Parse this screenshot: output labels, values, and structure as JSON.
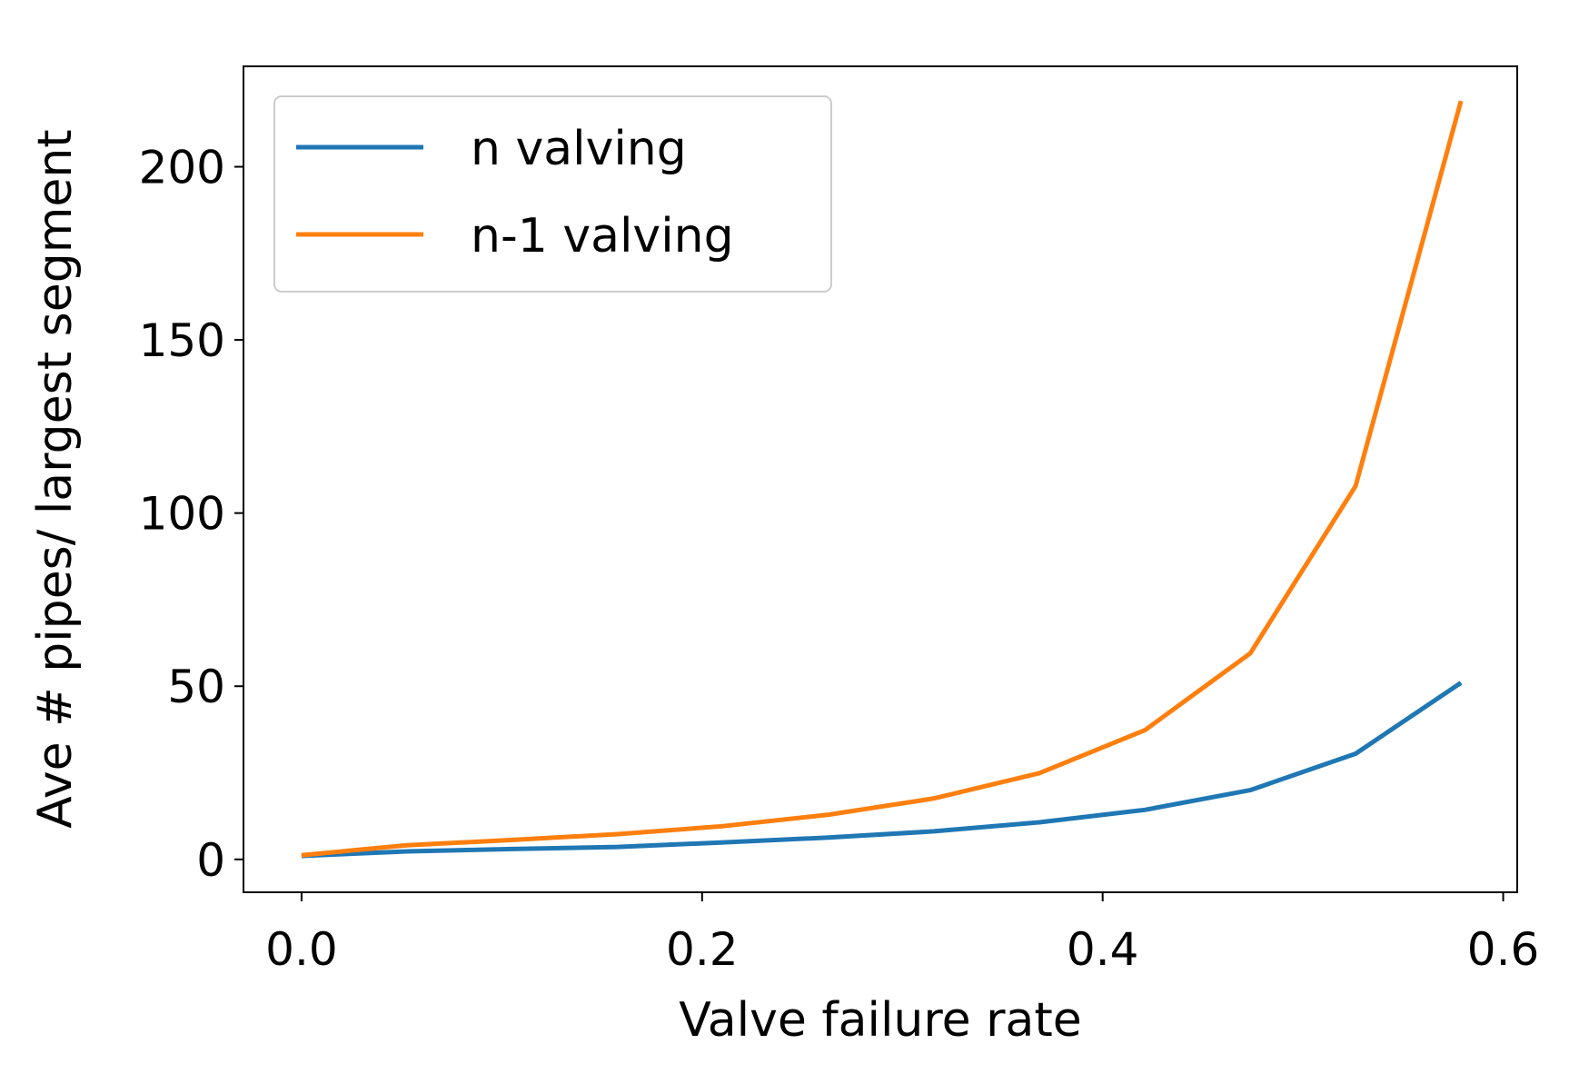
{
  "chart_data": {
    "type": "line",
    "title": "",
    "xlabel": "Valve failure rate",
    "ylabel": "Ave # pipes/ largest segment",
    "xlim": [
      -0.029,
      0.607
    ],
    "ylim": [
      -9.5,
      229
    ],
    "xticks": [
      0.0,
      0.2,
      0.4,
      0.6
    ],
    "xtick_labels": [
      "0.0",
      "0.2",
      "0.4",
      "0.6"
    ],
    "yticks": [
      0,
      50,
      100,
      150,
      200
    ],
    "ytick_labels": [
      "0",
      "50",
      "100",
      "150",
      "200"
    ],
    "grid": false,
    "legend_position": "top-left",
    "x": [
      0.0,
      0.0526,
      0.1053,
      0.1579,
      0.2105,
      0.2632,
      0.3158,
      0.3684,
      0.4211,
      0.4737,
      0.5263,
      0.5789
    ],
    "series": [
      {
        "name": "n valving",
        "color": "#1f77b4",
        "values": [
          1.0,
          2.3,
          3.0,
          3.6,
          4.9,
          6.3,
          8.1,
          10.7,
          14.3,
          20.0,
          30.5,
          51.0
        ]
      },
      {
        "name": "n-1 valving",
        "color": "#ff7f0e",
        "values": [
          1.2,
          4.1,
          5.6,
          7.3,
          9.6,
          12.9,
          17.6,
          24.9,
          37.3,
          59.5,
          107.8,
          219.0
        ]
      }
    ]
  }
}
